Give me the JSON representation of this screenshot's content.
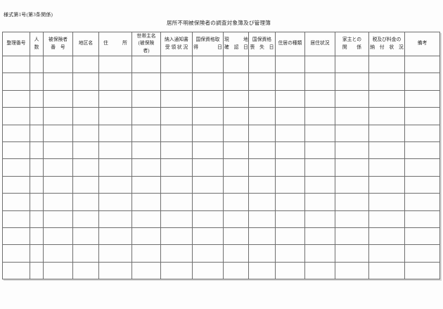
{
  "page": {
    "form_label": "様式第1号(第3条関係)",
    "title": "居所不明被保険者の調査対象簿及び管理簿"
  },
  "table": {
    "columns": [
      {
        "label": "整理番号"
      },
      {
        "label": "人\n数"
      },
      {
        "label": "被保険者\n番　号"
      },
      {
        "label": "地区名"
      },
      {
        "label": "住　　　所"
      },
      {
        "label": "世帯主名\n(被保険\n者)"
      },
      {
        "label": "納入通知書\n受 領 状 況"
      },
      {
        "label": "国保資格取\n得　　　　日"
      },
      {
        "label": "現　　　地\n確　認　日"
      },
      {
        "label": "国保資格\n喪　失　日"
      },
      {
        "label": "住居の種類"
      },
      {
        "label": "居住状況"
      },
      {
        "label": "家主との\n関　　係"
      },
      {
        "label": "税及び料金の\n納　付　状　況"
      },
      {
        "label": "備考"
      }
    ],
    "row_count": 13
  }
}
